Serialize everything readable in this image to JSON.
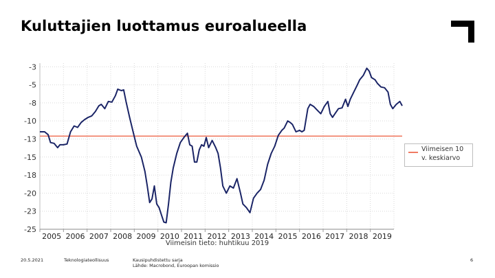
{
  "slide": {
    "title": "Kuluttajien luottamus euroalueella",
    "footer_date": "20.5.2021",
    "footer_org": "Teknologiateollisuus",
    "footer_source_line1": "Kausipuhdistettu sarja",
    "footer_source_line2": "Lähde: Macrobond, Euroopan komissio",
    "page_number": "6"
  },
  "colors": {
    "series": "#1a2466",
    "average": "#f07a62",
    "grid": "#d9d9d9"
  },
  "chart_data": {
    "type": "line",
    "title": "",
    "xlabel": "Viimeisin tieto: huhtikuu 2019",
    "ylabel": "",
    "xlim": [
      2004.5,
      2019.5
    ],
    "ylim": [
      -25.5,
      -2.5
    ],
    "xticks": [
      "2005",
      "2006",
      "2007",
      "2008",
      "2009",
      "2010",
      "2011",
      "2012",
      "2013",
      "2014",
      "2015",
      "2016",
      "2017",
      "2018",
      "2019"
    ],
    "yticks": [
      "-3",
      "-5",
      "-8",
      "-10",
      "-13",
      "-15",
      "-18",
      "-20",
      "-23",
      "-25"
    ],
    "yticks_values": [
      -3,
      -5.5,
      -8,
      -10.5,
      -13,
      -15.5,
      -18,
      -20.5,
      -23,
      -25.5
    ],
    "grid": true,
    "legend_position": "right",
    "series": [
      {
        "name": "",
        "points": [
          [
            2004.5,
            -12.0
          ],
          [
            2004.7,
            -12.0
          ],
          [
            2004.85,
            -12.4
          ],
          [
            2004.95,
            -13.5
          ],
          [
            2005.1,
            -13.6
          ],
          [
            2005.25,
            -14.2
          ],
          [
            2005.35,
            -13.8
          ],
          [
            2005.5,
            -13.8
          ],
          [
            2005.65,
            -13.7
          ],
          [
            2005.8,
            -12.0
          ],
          [
            2005.95,
            -11.2
          ],
          [
            2006.1,
            -11.4
          ],
          [
            2006.25,
            -10.7
          ],
          [
            2006.4,
            -10.3
          ],
          [
            2006.55,
            -10.0
          ],
          [
            2006.7,
            -9.8
          ],
          [
            2006.85,
            -9.2
          ],
          [
            2007.0,
            -8.4
          ],
          [
            2007.1,
            -8.2
          ],
          [
            2007.25,
            -8.8
          ],
          [
            2007.4,
            -7.8
          ],
          [
            2007.55,
            -7.9
          ],
          [
            2007.7,
            -7.0
          ],
          [
            2007.8,
            -6.1
          ],
          [
            2007.95,
            -6.3
          ],
          [
            2008.05,
            -6.2
          ],
          [
            2008.15,
            -7.8
          ],
          [
            2008.3,
            -10.0
          ],
          [
            2008.45,
            -12.0
          ],
          [
            2008.6,
            -14.0
          ],
          [
            2008.8,
            -15.5
          ],
          [
            2008.95,
            -17.5
          ],
          [
            2009.05,
            -19.5
          ],
          [
            2009.15,
            -21.8
          ],
          [
            2009.25,
            -21.3
          ],
          [
            2009.35,
            -19.5
          ],
          [
            2009.45,
            -22.0
          ],
          [
            2009.55,
            -22.5
          ],
          [
            2009.65,
            -23.5
          ],
          [
            2009.75,
            -24.5
          ],
          [
            2009.85,
            -24.6
          ],
          [
            2009.95,
            -22.0
          ],
          [
            2010.05,
            -19.0
          ],
          [
            2010.15,
            -17.0
          ],
          [
            2010.3,
            -15.0
          ],
          [
            2010.45,
            -13.5
          ],
          [
            2010.6,
            -12.8
          ],
          [
            2010.75,
            -12.2
          ],
          [
            2010.85,
            -13.8
          ],
          [
            2010.95,
            -14.0
          ],
          [
            2011.05,
            -16.2
          ],
          [
            2011.15,
            -16.2
          ],
          [
            2011.25,
            -14.5
          ],
          [
            2011.35,
            -13.8
          ],
          [
            2011.45,
            -14.0
          ],
          [
            2011.55,
            -12.8
          ],
          [
            2011.65,
            -14.2
          ],
          [
            2011.8,
            -13.2
          ],
          [
            2011.95,
            -14.2
          ],
          [
            2012.05,
            -15.0
          ],
          [
            2012.15,
            -17.0
          ],
          [
            2012.25,
            -19.5
          ],
          [
            2012.4,
            -20.5
          ],
          [
            2012.55,
            -19.5
          ],
          [
            2012.7,
            -19.8
          ],
          [
            2012.85,
            -18.5
          ],
          [
            2013.0,
            -20.5
          ],
          [
            2013.1,
            -22.0
          ],
          [
            2013.25,
            -22.5
          ],
          [
            2013.4,
            -23.2
          ],
          [
            2013.55,
            -21.2
          ],
          [
            2013.7,
            -20.5
          ],
          [
            2013.85,
            -20.0
          ],
          [
            2014.0,
            -18.7
          ],
          [
            2014.15,
            -16.5
          ],
          [
            2014.3,
            -15.0
          ],
          [
            2014.45,
            -14.0
          ],
          [
            2014.6,
            -12.5
          ],
          [
            2014.75,
            -11.8
          ],
          [
            2014.85,
            -11.5
          ],
          [
            2015.0,
            -10.5
          ],
          [
            2015.1,
            -10.7
          ],
          [
            2015.2,
            -11.0
          ],
          [
            2015.35,
            -12.0
          ],
          [
            2015.5,
            -11.8
          ],
          [
            2015.6,
            -12.0
          ],
          [
            2015.7,
            -11.8
          ],
          [
            2015.85,
            -8.8
          ],
          [
            2015.95,
            -8.2
          ],
          [
            2016.1,
            -8.5
          ],
          [
            2016.25,
            -9.0
          ],
          [
            2016.4,
            -9.5
          ],
          [
            2016.55,
            -8.5
          ],
          [
            2016.7,
            -7.8
          ],
          [
            2016.8,
            -9.5
          ],
          [
            2016.9,
            -10.0
          ],
          [
            2017.0,
            -9.5
          ],
          [
            2017.15,
            -8.8
          ],
          [
            2017.3,
            -8.7
          ],
          [
            2017.45,
            -7.5
          ],
          [
            2017.55,
            -8.5
          ],
          [
            2017.65,
            -7.5
          ],
          [
            2017.8,
            -6.5
          ],
          [
            2017.95,
            -5.5
          ],
          [
            2018.05,
            -4.8
          ],
          [
            2018.2,
            -4.2
          ],
          [
            2018.35,
            -3.2
          ],
          [
            2018.45,
            -3.6
          ],
          [
            2018.55,
            -4.5
          ],
          [
            2018.7,
            -4.8
          ],
          [
            2018.8,
            -5.3
          ],
          [
            2018.95,
            -5.8
          ],
          [
            2019.1,
            -5.9
          ],
          [
            2019.25,
            -6.5
          ],
          [
            2019.35,
            -8.2
          ],
          [
            2019.45,
            -8.8
          ],
          [
            2019.6,
            -8.2
          ],
          [
            2019.75,
            -7.8
          ],
          [
            2019.85,
            -8.4
          ]
        ]
      },
      {
        "name": "Viimeisen 10 v. keskiarvo",
        "points": [
          [
            2004.5,
            -12.6
          ],
          [
            2019.85,
            -12.6
          ]
        ]
      }
    ],
    "note": "Viimeisin tieto: huhtikuu 2019"
  }
}
